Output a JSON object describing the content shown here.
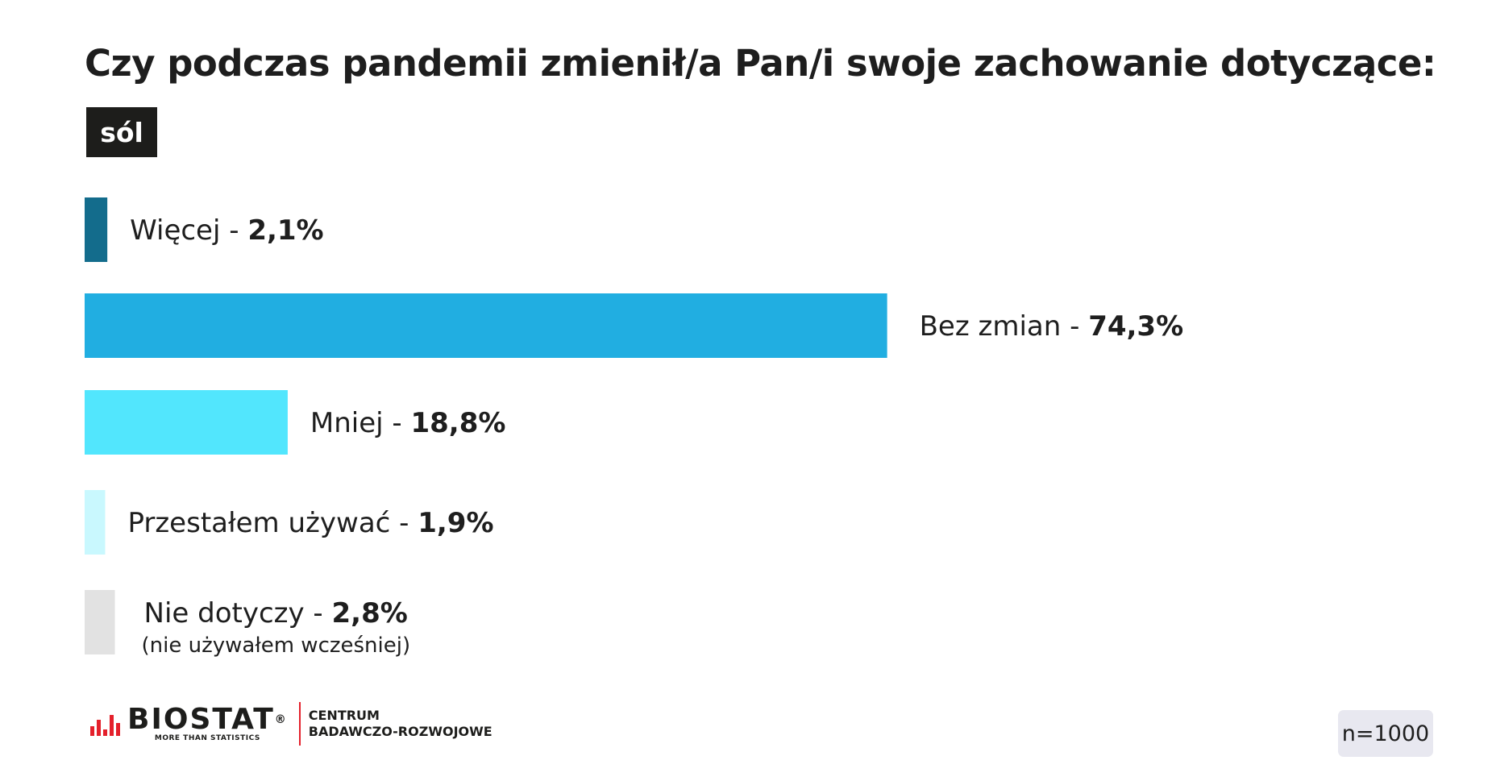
{
  "chart_data": {
    "type": "bar",
    "orientation": "horizontal",
    "title": "Czy podczas pandemii zmienił/a Pan/i swoje zachowanie dotyczące:",
    "subtitle": "sól",
    "categories": [
      "Więcej",
      "Bez zmian",
      "Mniej",
      "Przestałem używać",
      "Nie dotyczy"
    ],
    "values": [
      2.1,
      74.3,
      18.8,
      1.9,
      2.8
    ],
    "value_labels": [
      "2,1%",
      "74,3%",
      "18,8%",
      "1,9%",
      "2,8%"
    ],
    "notes": [
      "",
      "",
      "",
      "",
      "(nie używałem wcześniej)"
    ],
    "colors": [
      "#136c8c",
      "#21aee1",
      "#52e6fd",
      "#c9f8fe",
      "#e2e2e2"
    ],
    "unit": "%",
    "grid": false,
    "legend": "none"
  },
  "footer": {
    "logo_name": "BIOSTAT",
    "logo_registered": "®",
    "logo_tagline": "MORE THAN STATISTICS",
    "center_line1": "CENTRUM",
    "center_line2": "BADAWCZO-ROZWOJOWE",
    "sample_size": "n=1000"
  }
}
